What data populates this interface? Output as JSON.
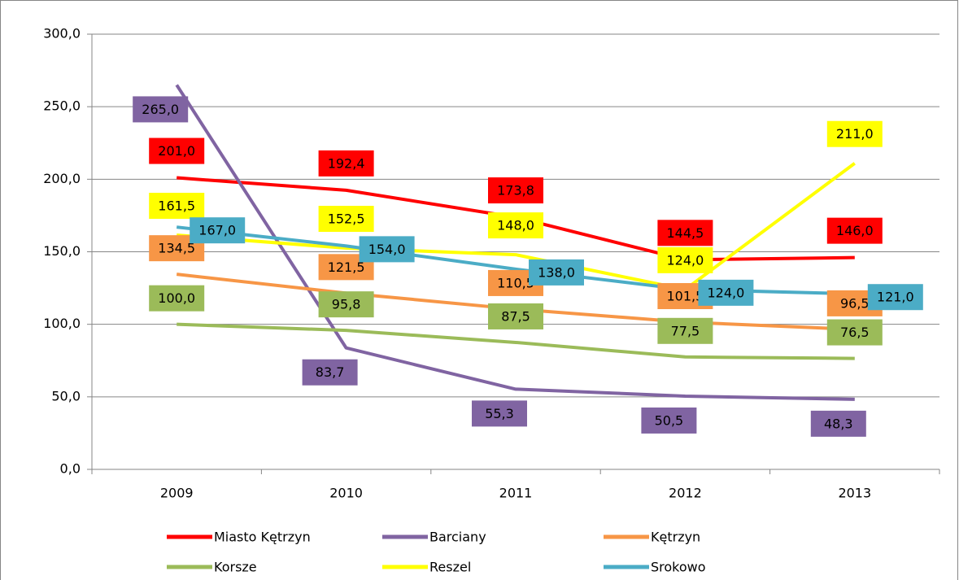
{
  "chart_data": {
    "type": "line",
    "categories": [
      "2009",
      "2010",
      "2011",
      "2012",
      "2013"
    ],
    "series": [
      {
        "name": "Miasto Kętrzyn",
        "color": "#ff0000",
        "values": [
          201.0,
          192.4,
          173.8,
          144.5,
          146.0
        ],
        "value_labels": [
          "201,0",
          "192,4",
          "173,8",
          "144,5",
          "146,0"
        ]
      },
      {
        "name": "Barciany",
        "color": "#8064a2",
        "values": [
          265.0,
          83.7,
          55.3,
          50.5,
          48.3
        ],
        "value_labels": [
          "265,0",
          "83,7",
          "55,3",
          "50,5",
          "48,3"
        ]
      },
      {
        "name": "Kętrzyn",
        "color": "#f79646",
        "values": [
          134.5,
          121.5,
          110.5,
          101.5,
          96.5
        ],
        "value_labels": [
          "134,5",
          "121,5",
          "110,5",
          "101,5",
          "96,5"
        ]
      },
      {
        "name": "Korsze",
        "color": "#9bbb59",
        "values": [
          100.0,
          95.8,
          87.5,
          77.5,
          76.5
        ],
        "value_labels": [
          "100,0",
          "95,8",
          "87,5",
          "77,5",
          "76,5"
        ]
      },
      {
        "name": "Reszel",
        "color": "#ffff00",
        "values": [
          161.5,
          152.5,
          148.0,
          124.0,
          211.0
        ],
        "value_labels": [
          "161,5",
          "152,5",
          "148,0",
          "124,0",
          "211,0"
        ]
      },
      {
        "name": "Srokowo",
        "color": "#4bacc6",
        "values": [
          167.0,
          154.0,
          138.0,
          124.0,
          121.0
        ],
        "value_labels": [
          "167,0",
          "154,0",
          "138,0",
          "124,0",
          "121,0"
        ]
      }
    ],
    "ylim": [
      0,
      300
    ],
    "yticks": [
      {
        "value": 0,
        "label": "0,0"
      },
      {
        "value": 50,
        "label": "50,0"
      },
      {
        "value": 100,
        "label": "100,0"
      },
      {
        "value": 150,
        "label": "150,0"
      },
      {
        "value": 200,
        "label": "200,0"
      },
      {
        "value": 250,
        "label": "250,0"
      },
      {
        "value": 300,
        "label": "300,0"
      }
    ],
    "grid": true,
    "legend": "bottom"
  }
}
